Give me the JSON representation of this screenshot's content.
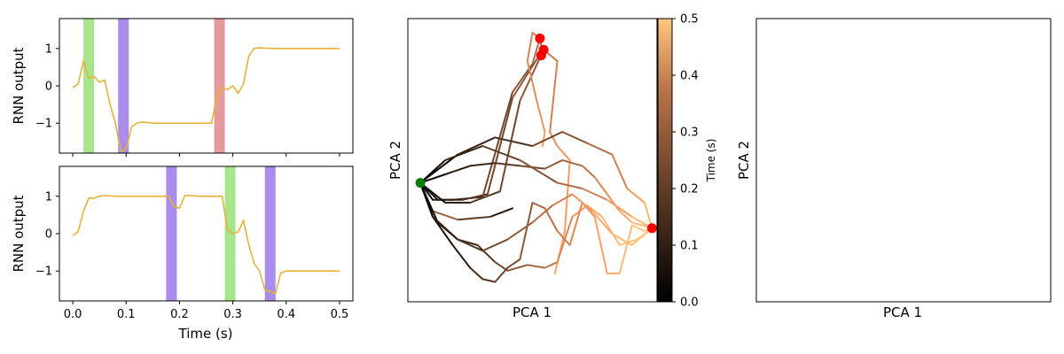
{
  "colors": {
    "output_line": "#e8b23a",
    "green_band": "#a6e58c",
    "purple_band": "#a98ceb",
    "red_band": "#e59b9b",
    "start_marker": "#008000",
    "end_marker": "#ff0000",
    "colormap": "copper"
  },
  "chart_data": [
    {
      "type": "line",
      "ylabel": "RNN output",
      "xlabel": "",
      "xlim": [
        -0.025,
        0.525
      ],
      "ylim": [
        -1.8,
        1.8
      ],
      "x_ticks": [
        0.0,
        0.1,
        0.2,
        0.3,
        0.4,
        0.5
      ],
      "x_tick_labels_shown": false,
      "y_ticks": [
        1,
        0,
        -1
      ],
      "y_tick_labels": [
        "1",
        "0",
        "−1"
      ],
      "bands": [
        {
          "x0": 0.02,
          "x1": 0.04,
          "color": "green"
        },
        {
          "x0": 0.085,
          "x1": 0.105,
          "color": "purple"
        },
        {
          "x0": 0.265,
          "x1": 0.285,
          "color": "red"
        }
      ],
      "series": [
        {
          "x": [
            0.0,
            0.01,
            0.02,
            0.03,
            0.04,
            0.05,
            0.06,
            0.07,
            0.08,
            0.09,
            0.1,
            0.11,
            0.12,
            0.13,
            0.14,
            0.15,
            0.16,
            0.18,
            0.2,
            0.22,
            0.24,
            0.26,
            0.27,
            0.28,
            0.29,
            0.3,
            0.31,
            0.32,
            0.33,
            0.34,
            0.35,
            0.36,
            0.38,
            0.4,
            0.42,
            0.44,
            0.46,
            0.48,
            0.5
          ],
          "values": [
            -0.05,
            0.05,
            0.65,
            0.2,
            0.25,
            0.1,
            0.15,
            -0.5,
            -1.0,
            -1.75,
            -1.7,
            -1.1,
            -1.0,
            -0.97,
            -0.98,
            -1.0,
            -1.0,
            -1.0,
            -1.0,
            -1.0,
            -1.0,
            -1.0,
            -0.3,
            -0.05,
            -0.1,
            0.0,
            -0.2,
            0.05,
            0.8,
            1.0,
            1.02,
            1.01,
            1.0,
            1.0,
            1.0,
            1.0,
            1.0,
            1.0,
            1.0
          ]
        }
      ]
    },
    {
      "type": "line",
      "ylabel": "RNN output",
      "xlabel": "Time (s)",
      "xlim": [
        -0.025,
        0.525
      ],
      "ylim": [
        -1.8,
        1.8
      ],
      "x_ticks": [
        0.0,
        0.1,
        0.2,
        0.3,
        0.4,
        0.5
      ],
      "x_tick_labels": [
        "0.0",
        "0.1",
        "0.2",
        "0.3",
        "0.4",
        "0.5"
      ],
      "y_ticks": [
        1,
        0,
        -1
      ],
      "y_tick_labels": [
        "1",
        "0",
        "−1"
      ],
      "bands": [
        {
          "x0": 0.175,
          "x1": 0.195,
          "color": "purple"
        },
        {
          "x0": 0.285,
          "x1": 0.305,
          "color": "green"
        },
        {
          "x0": 0.36,
          "x1": 0.38,
          "color": "purple"
        }
      ],
      "series": [
        {
          "x": [
            0.0,
            0.01,
            0.02,
            0.03,
            0.04,
            0.05,
            0.06,
            0.08,
            0.1,
            0.12,
            0.14,
            0.16,
            0.18,
            0.19,
            0.2,
            0.21,
            0.22,
            0.24,
            0.26,
            0.28,
            0.29,
            0.3,
            0.31,
            0.32,
            0.33,
            0.34,
            0.35,
            0.36,
            0.37,
            0.38,
            0.39,
            0.4,
            0.42,
            0.44,
            0.46,
            0.48,
            0.5
          ],
          "values": [
            -0.05,
            0.05,
            0.6,
            0.95,
            0.95,
            1.0,
            1.02,
            1.0,
            1.0,
            1.0,
            1.0,
            1.0,
            1.0,
            0.72,
            0.68,
            1.02,
            1.02,
            1.0,
            1.0,
            1.0,
            0.1,
            0.0,
            0.05,
            0.35,
            -0.3,
            -0.8,
            -1.0,
            -1.5,
            -1.55,
            -1.6,
            -1.05,
            -1.0,
            -1.0,
            -1.0,
            -1.0,
            -1.0,
            -1.0
          ]
        }
      ]
    },
    {
      "type": "line",
      "xlabel": "PCA 1",
      "ylabel": "PCA 2",
      "colorbar": {
        "label": "Time (s)",
        "range": [
          0.0,
          0.5
        ],
        "ticks": [
          0.0,
          0.1,
          0.2,
          0.3,
          0.4,
          0.5
        ],
        "tick_labels": [
          "0.0",
          "0.1",
          "0.2",
          "0.3",
          "0.4",
          "0.5"
        ]
      },
      "start_point": {
        "x": 0.05,
        "y": 0.42
      },
      "end_points": [
        {
          "x": 0.53,
          "y": 0.93
        },
        {
          "x": 0.545,
          "y": 0.89
        },
        {
          "x": 0.535,
          "y": 0.87
        },
        {
          "x": 0.98,
          "y": 0.26
        }
      ],
      "trajectories": [
        {
          "x": [
            0.42,
            0.33,
            0.2,
            0.1,
            0.05
          ],
          "y": [
            0.33,
            0.3,
            0.29,
            0.32,
            0.42
          ],
          "t": [
            0.0,
            0.1,
            0.2,
            0.3,
            0.5
          ]
        },
        {
          "x": [
            0.05,
            0.1,
            0.18,
            0.3,
            0.42,
            0.5,
            0.53
          ],
          "y": [
            0.42,
            0.36,
            0.36,
            0.37,
            0.74,
            0.84,
            0.93
          ],
          "t": [
            0.0,
            0.05,
            0.1,
            0.15,
            0.2,
            0.25,
            0.3
          ]
        },
        {
          "x": [
            0.05,
            0.12,
            0.22,
            0.32,
            0.42,
            0.52,
            0.545
          ],
          "y": [
            0.42,
            0.36,
            0.36,
            0.38,
            0.72,
            0.86,
            0.89
          ],
          "t": [
            0.0,
            0.05,
            0.1,
            0.15,
            0.2,
            0.25,
            0.3
          ]
        },
        {
          "x": [
            0.05,
            0.15,
            0.25,
            0.37,
            0.45,
            0.54,
            0.53
          ],
          "y": [
            0.42,
            0.35,
            0.35,
            0.39,
            0.71,
            0.88,
            0.93
          ],
          "t": [
            0.0,
            0.05,
            0.1,
            0.15,
            0.2,
            0.25,
            0.3
          ]
        },
        {
          "x": [
            0.53,
            0.5,
            0.48,
            0.52,
            0.55,
            0.54
          ],
          "y": [
            0.93,
            0.95,
            0.85,
            0.7,
            0.6,
            0.55
          ],
          "t": [
            0.3,
            0.32,
            0.34,
            0.36,
            0.38,
            0.4
          ]
        },
        {
          "x": [
            0.545,
            0.6,
            0.57,
            0.6,
            0.65,
            0.63,
            0.59
          ],
          "y": [
            0.89,
            0.85,
            0.6,
            0.55,
            0.5,
            0.25,
            0.1
          ],
          "t": [
            0.3,
            0.32,
            0.34,
            0.36,
            0.38,
            0.4,
            0.42
          ]
        },
        {
          "x": [
            0.05,
            0.15,
            0.25,
            0.35,
            0.45,
            0.55,
            0.62,
            0.7,
            0.75,
            0.8,
            0.85,
            0.9,
            0.98
          ],
          "y": [
            0.42,
            0.45,
            0.48,
            0.49,
            0.48,
            0.47,
            0.5,
            0.48,
            0.44,
            0.38,
            0.32,
            0.28,
            0.26
          ],
          "t": [
            0.0,
            0.04,
            0.08,
            0.12,
            0.16,
            0.2,
            0.24,
            0.28,
            0.32,
            0.36,
            0.4,
            0.44,
            0.5
          ]
        },
        {
          "x": [
            0.05,
            0.12,
            0.2,
            0.28,
            0.35,
            0.4,
            0.48,
            0.55,
            0.6,
            0.66,
            0.72,
            0.78,
            0.85,
            0.92,
            0.98
          ],
          "y": [
            0.42,
            0.28,
            0.22,
            0.2,
            0.14,
            0.11,
            0.13,
            0.12,
            0.14,
            0.3,
            0.34,
            0.3,
            0.2,
            0.22,
            0.26
          ],
          "t": [
            0.0,
            0.04,
            0.08,
            0.12,
            0.16,
            0.2,
            0.24,
            0.28,
            0.32,
            0.36,
            0.4,
            0.44,
            0.48,
            0.5,
            0.5
          ]
        },
        {
          "x": [
            0.05,
            0.1,
            0.18,
            0.25,
            0.3,
            0.35,
            0.4,
            0.45,
            0.5,
            0.55,
            0.6,
            0.65,
            0.7,
            0.75,
            0.8,
            0.85,
            0.9,
            0.95,
            0.98
          ],
          "y": [
            0.42,
            0.3,
            0.2,
            0.12,
            0.08,
            0.07,
            0.12,
            0.15,
            0.35,
            0.33,
            0.25,
            0.2,
            0.35,
            0.3,
            0.1,
            0.1,
            0.27,
            0.25,
            0.26
          ],
          "t": [
            0.0,
            0.03,
            0.06,
            0.09,
            0.12,
            0.15,
            0.18,
            0.21,
            0.24,
            0.27,
            0.3,
            0.33,
            0.36,
            0.39,
            0.42,
            0.45,
            0.48,
            0.5,
            0.5
          ]
        },
        {
          "x": [
            0.05,
            0.2,
            0.35,
            0.5,
            0.62,
            0.72,
            0.82,
            0.88,
            0.95,
            0.98
          ],
          "y": [
            0.42,
            0.52,
            0.58,
            0.55,
            0.6,
            0.56,
            0.52,
            0.4,
            0.35,
            0.26
          ],
          "t": [
            0.0,
            0.05,
            0.1,
            0.15,
            0.2,
            0.25,
            0.3,
            0.35,
            0.42,
            0.5
          ]
        },
        {
          "x": [
            0.05,
            0.1,
            0.2,
            0.3,
            0.4,
            0.5,
            0.58,
            0.66,
            0.74,
            0.82,
            0.9,
            0.98
          ],
          "y": [
            0.42,
            0.3,
            0.22,
            0.18,
            0.22,
            0.28,
            0.34,
            0.38,
            0.32,
            0.24,
            0.2,
            0.26
          ],
          "t": [
            0.0,
            0.05,
            0.1,
            0.15,
            0.2,
            0.25,
            0.3,
            0.35,
            0.4,
            0.45,
            0.48,
            0.5
          ]
        },
        {
          "x": [
            0.05,
            0.15,
            0.3,
            0.45,
            0.6,
            0.7,
            0.8,
            0.9,
            0.98
          ],
          "y": [
            0.42,
            0.5,
            0.55,
            0.5,
            0.42,
            0.4,
            0.36,
            0.3,
            0.26
          ],
          "t": [
            0.0,
            0.06,
            0.12,
            0.18,
            0.24,
            0.3,
            0.36,
            0.42,
            0.5
          ]
        }
      ]
    },
    {
      "type": "scatter",
      "xlabel": "PCA 1",
      "ylabel": "PCA 2",
      "empty": true
    }
  ]
}
